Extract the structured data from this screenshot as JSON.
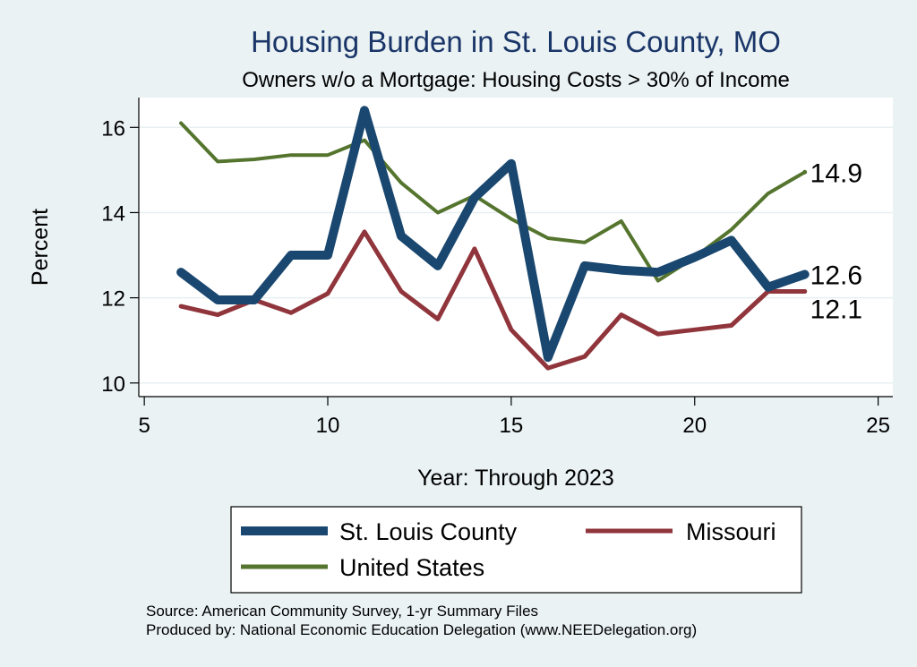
{
  "chart_data": {
    "type": "line",
    "title": "Housing Burden in St. Louis County, MO",
    "subtitle": "Owners w/o a Mortgage: Housing Costs > 30% of Income",
    "xlabel": "Year: Through 2023",
    "ylabel": "Percent",
    "xlim": [
      4.85,
      25.4
    ],
    "ylim": [
      9.68,
      16.7
    ],
    "xticks": [
      5,
      10,
      15,
      20,
      25
    ],
    "yticks": [
      10,
      12,
      14,
      16
    ],
    "grid": "horizontal",
    "legend": "bottom",
    "x": [
      6,
      7,
      8,
      9,
      10,
      11,
      12,
      13,
      14,
      15,
      16,
      17,
      18,
      19,
      20,
      21,
      22,
      23
    ],
    "series": [
      {
        "name": "St. Louis County",
        "color": "#1a476f",
        "values": [
          12.6,
          11.95,
          11.95,
          13.0,
          13.0,
          16.4,
          13.45,
          12.75,
          14.35,
          15.15,
          10.6,
          12.75,
          12.65,
          12.6,
          12.95,
          13.35,
          12.25,
          12.55
        ],
        "end_label": "12.6"
      },
      {
        "name": "Missouri",
        "color": "#90353b",
        "values": [
          11.8,
          11.6,
          11.95,
          11.65,
          12.1,
          13.55,
          12.15,
          11.5,
          13.15,
          11.25,
          10.35,
          10.62,
          11.6,
          11.15,
          11.25,
          11.35,
          12.15,
          12.15
        ],
        "end_label": "12.1"
      },
      {
        "name": "United States",
        "color": "#55752f",
        "values": [
          16.1,
          15.2,
          15.25,
          15.35,
          15.35,
          15.7,
          14.7,
          14.0,
          14.4,
          13.85,
          13.4,
          13.3,
          13.8,
          12.4,
          12.95,
          13.6,
          14.45,
          14.95
        ],
        "end_label": "14.9"
      }
    ],
    "notes": [
      "Source: American Community Survey, 1-yr Summary Files",
      "Produced by: National Economic Education Delegation (www.NEEDelegation.org)"
    ]
  }
}
